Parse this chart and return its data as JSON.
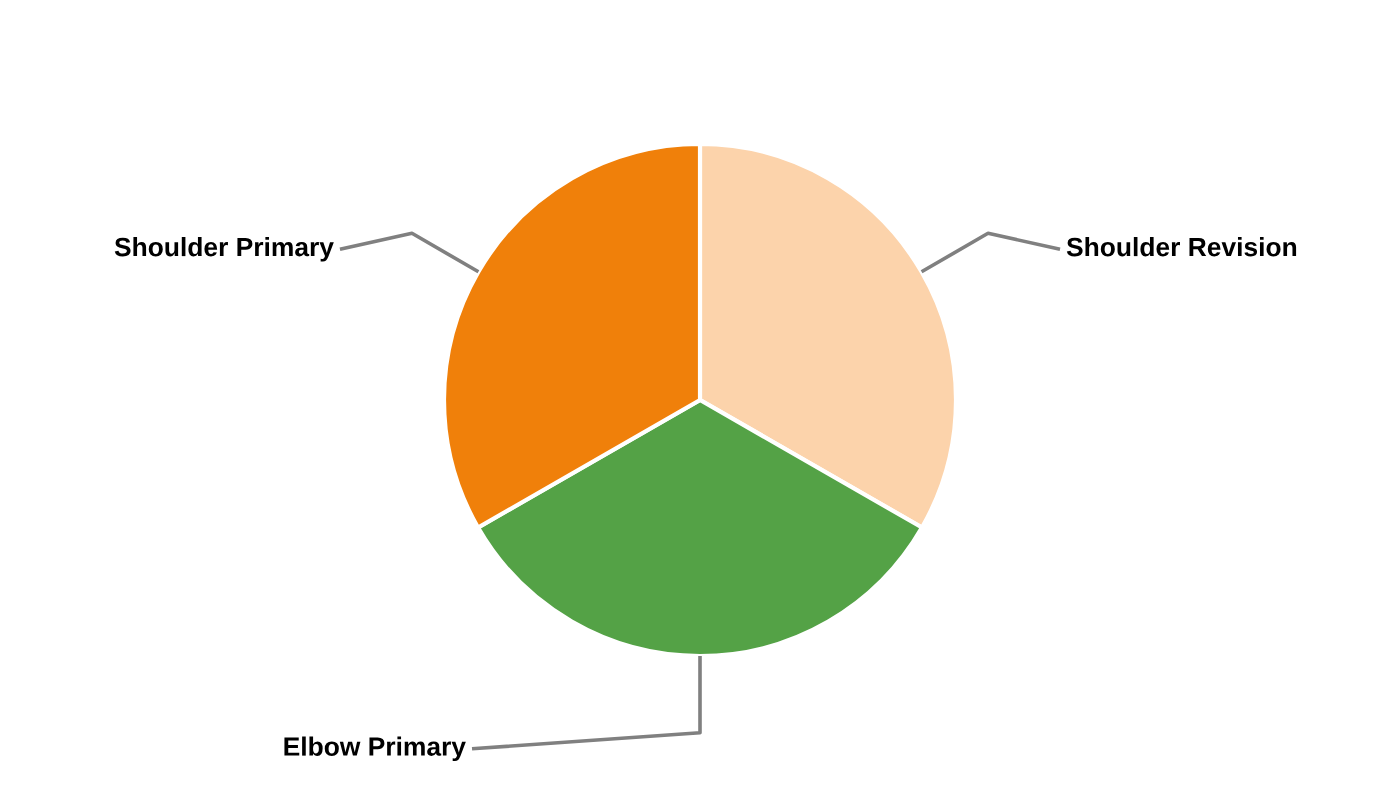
{
  "chart_data": {
    "type": "pie",
    "categories": [
      "Shoulder Revision",
      "Elbow Primary",
      "Shoulder Primary"
    ],
    "values": [
      33.3,
      33.4,
      33.3
    ],
    "colors": [
      "#fcd3ab",
      "#54a246",
      "#f0800a"
    ]
  }
}
